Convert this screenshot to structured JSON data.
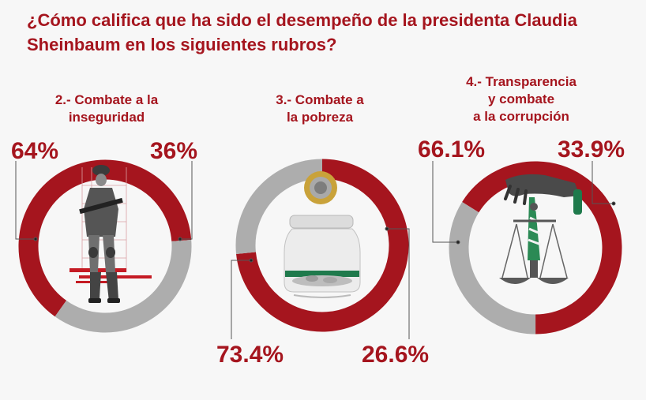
{
  "title_lines": [
    "¿Cómo califica que ha sido el desempeño de la presidenta Claudia",
    "Sheinbaum en los siguientes rubros?"
  ],
  "colors": {
    "red": "#a5151e",
    "gray": "#adadad",
    "background": "#f7f7f7"
  },
  "chart_data": [
    {
      "type": "pie",
      "title_lines": [
        "2.- Combate a la",
        "inseguridad"
      ],
      "slices": [
        {
          "value": 64,
          "label": "64%",
          "color": "#a5151e"
        },
        {
          "value": 36,
          "label": "36%",
          "color": "#adadad"
        }
      ],
      "icon": "soldier-icon"
    },
    {
      "type": "pie",
      "title_lines": [
        "3.- Combate a",
        "la pobreza"
      ],
      "slices": [
        {
          "value": 73.4,
          "label": "73.4%",
          "color": "#a5151e"
        },
        {
          "value": 26.6,
          "label": "26.6%",
          "color": "#adadad"
        }
      ],
      "icon": "coin-jar-icon"
    },
    {
      "type": "pie",
      "title_lines": [
        "4.- Transparencia",
        "y combate",
        "a la corrupción"
      ],
      "slices": [
        {
          "value": 66.1,
          "label": "66.1%",
          "color": "#a5151e"
        },
        {
          "value": 33.9,
          "label": "33.9%",
          "color": "#adadad"
        }
      ],
      "icon": "scales-hand-icon"
    }
  ]
}
